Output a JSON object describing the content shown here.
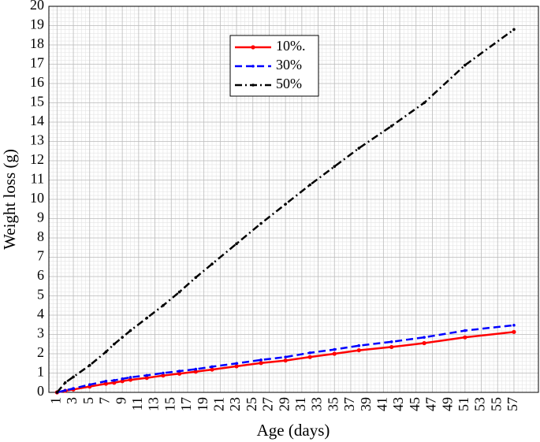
{
  "chart_data": {
    "type": "line",
    "x_label": "Age (days)",
    "y_label": "Weight loss (g)",
    "x": [
      1,
      2,
      3,
      5,
      7,
      8,
      9,
      10,
      12,
      14,
      16,
      18,
      20,
      23,
      26,
      29,
      32,
      35,
      38,
      42,
      46,
      51,
      57
    ],
    "series": [
      {
        "name": "10%.",
        "color": "#ff0000",
        "dash": "solid",
        "values": [
          0,
          0.08,
          0.15,
          0.3,
          0.45,
          0.5,
          0.58,
          0.65,
          0.75,
          0.87,
          0.97,
          1.07,
          1.18,
          1.35,
          1.52,
          1.65,
          1.83,
          2.0,
          2.18,
          2.35,
          2.55,
          2.85,
          3.13
        ]
      },
      {
        "name": "30%",
        "color": "#0000ff",
        "dash": "dashed",
        "values": [
          0,
          0.1,
          0.2,
          0.4,
          0.58,
          0.62,
          0.7,
          0.78,
          0.88,
          1.0,
          1.1,
          1.2,
          1.33,
          1.5,
          1.68,
          1.83,
          2.05,
          2.22,
          2.42,
          2.62,
          2.85,
          3.2,
          3.48
        ]
      },
      {
        "name": "50%",
        "color": "#000000",
        "dash": "dashdot",
        "values": [
          0,
          0.5,
          0.8,
          1.4,
          2.1,
          2.5,
          2.85,
          3.2,
          3.85,
          4.5,
          5.2,
          5.95,
          6.65,
          7.7,
          8.75,
          9.75,
          10.75,
          11.7,
          12.65,
          13.8,
          15.0,
          16.95,
          18.8
        ]
      }
    ],
    "xlim": [
      0,
      60
    ],
    "xticks": [
      1,
      3,
      5,
      7,
      9,
      11,
      13,
      15,
      17,
      19,
      21,
      23,
      25,
      27,
      29,
      31,
      33,
      35,
      37,
      39,
      41,
      43,
      45,
      47,
      49,
      51,
      53,
      55,
      57
    ],
    "ylim": [
      0,
      20
    ],
    "yticks": [
      0,
      1,
      2,
      3,
      4,
      5,
      6,
      7,
      8,
      9,
      10,
      11,
      12,
      13,
      14,
      15,
      16,
      17,
      18,
      19,
      20
    ],
    "grid": true,
    "minor_grid": true,
    "legend": "top"
  }
}
